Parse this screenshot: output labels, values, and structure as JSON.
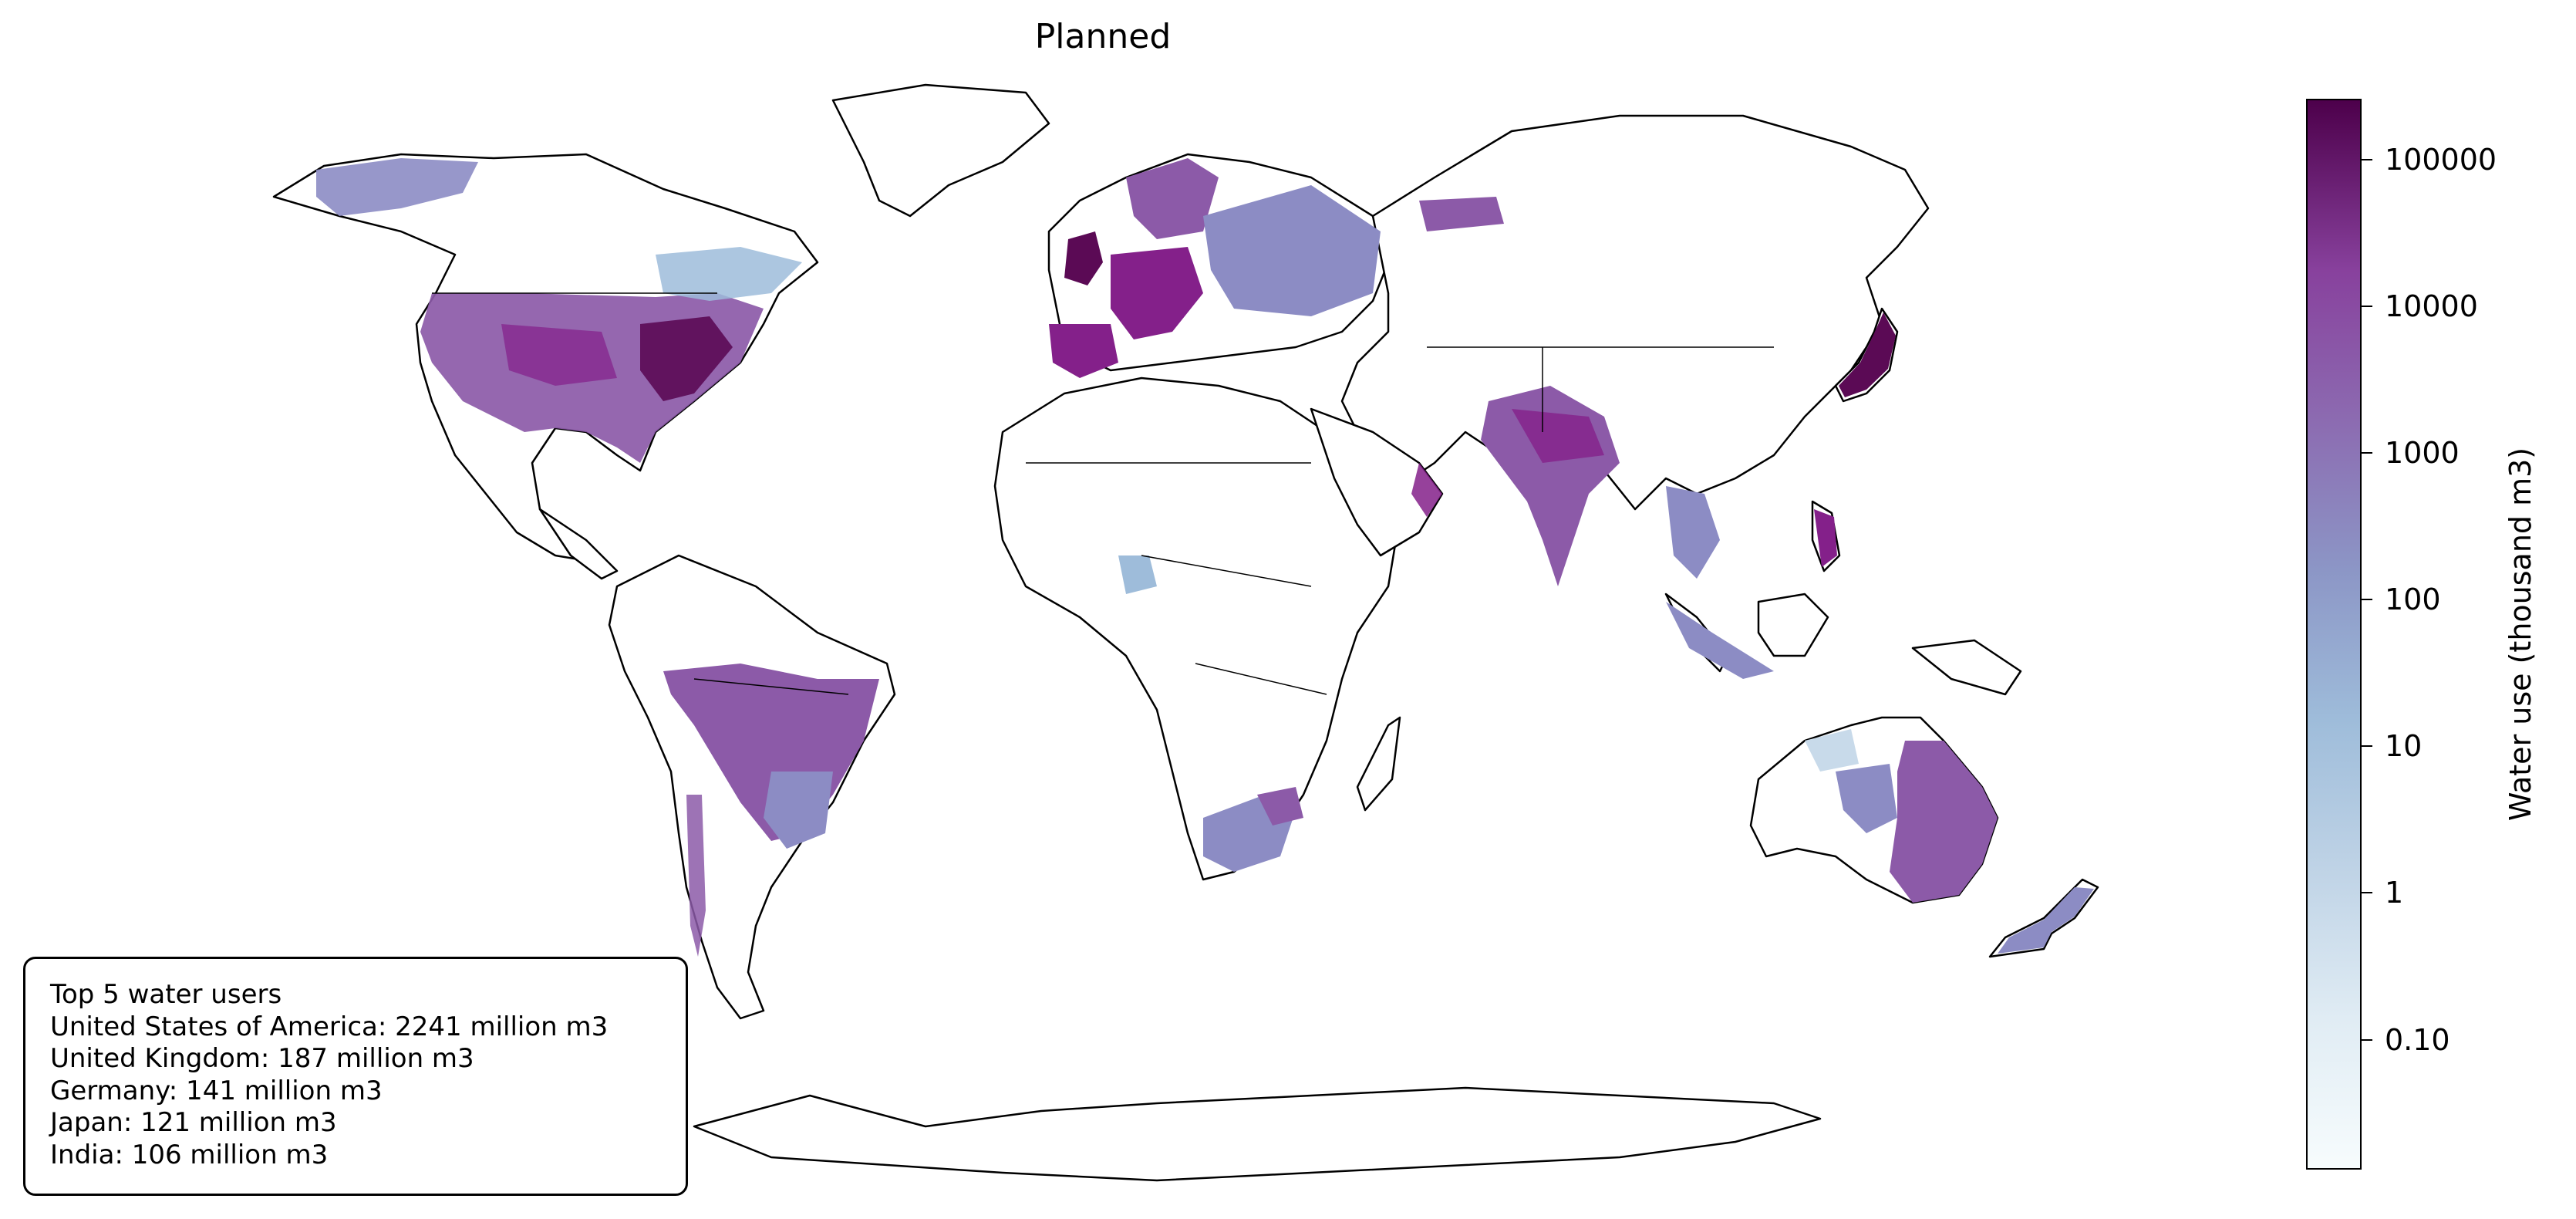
{
  "title": "Planned",
  "colorbar": {
    "label": "Water use (thousand m3)",
    "scale": "log",
    "colormap": "BuPu",
    "range": [
      0.013,
      260000
    ],
    "ticks": [
      {
        "value": 100000,
        "label": "100000"
      },
      {
        "value": 10000,
        "label": "10000"
      },
      {
        "value": 1000,
        "label": "1000"
      },
      {
        "value": 100,
        "label": "100"
      },
      {
        "value": 10,
        "label": "10"
      },
      {
        "value": 1,
        "label": "1"
      },
      {
        "value": 0.1,
        "label": "0.10"
      }
    ]
  },
  "legend": {
    "heading": "Top 5 water users",
    "entries": [
      "United States of America: 2241 million m3",
      "United Kingdom: 187 million m3",
      "Germany: 141 million m3",
      "Japan: 121 million m3",
      "India: 106 million m3"
    ]
  },
  "colors": {
    "very_high": "#5b0a55",
    "high": "#84208a",
    "mid_high": "#8c5aa8",
    "mid": "#8c8cc4",
    "low": "#9ebcda",
    "very_low": "#c8daea",
    "no_data": "#ffffff"
  }
}
